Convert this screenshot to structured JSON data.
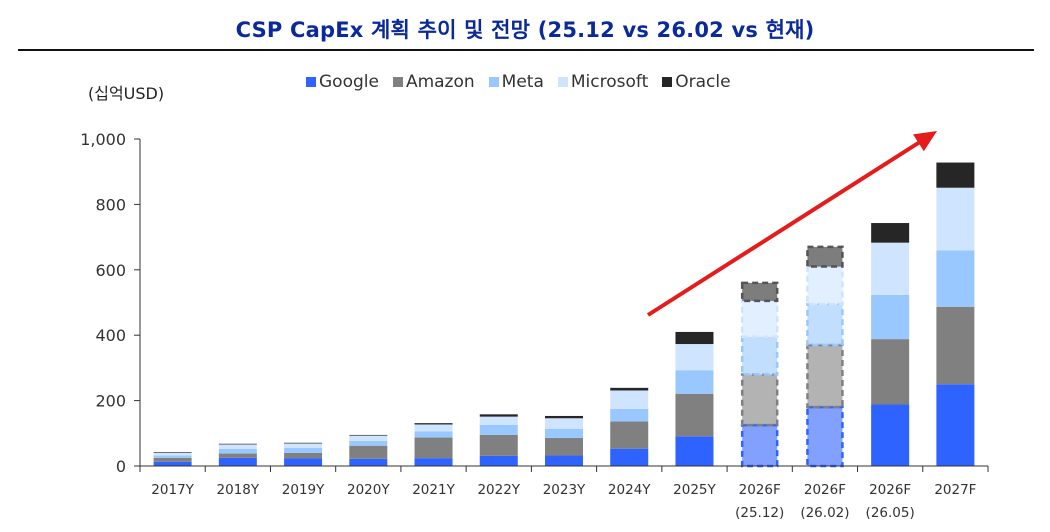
{
  "title": "CSP CapEx 계획 추이 및 전망 (25.12 vs 26.02 vs 현재)",
  "unit_label": "(십억USD)",
  "colors": {
    "Google": "#2f63ff",
    "Amazon": "#808080",
    "Meta": "#98c8ff",
    "Microsoft": "#cfe4ff",
    "Oracle": "#262626",
    "arrow": "#e51c1c",
    "title": "#0b2a99"
  },
  "chart_data": {
    "type": "bar",
    "stacked": true,
    "title": "CSP CapEx 계획 추이 및 전망 (25.12 vs 26.02 vs 현재)",
    "ylabel": "(십억USD)",
    "ylim": [
      0,
      1000
    ],
    "yticks": [
      0,
      200,
      400,
      600,
      800,
      1000
    ],
    "ytick_labels": [
      "0",
      "200",
      "400",
      "600",
      "800",
      "1,000"
    ],
    "legend_position": "top-center",
    "categories": [
      {
        "line1": "2017Y",
        "line2": ""
      },
      {
        "line1": "2018Y",
        "line2": ""
      },
      {
        "line1": "2019Y",
        "line2": ""
      },
      {
        "line1": "2020Y",
        "line2": ""
      },
      {
        "line1": "2021Y",
        "line2": ""
      },
      {
        "line1": "2022Y",
        "line2": ""
      },
      {
        "line1": "2023Y",
        "line2": ""
      },
      {
        "line1": "2024Y",
        "line2": ""
      },
      {
        "line1": "2025Y",
        "line2": ""
      },
      {
        "line1": "2026F",
        "line2": "(25.12)"
      },
      {
        "line1": "2026F",
        "line2": "(26.02)"
      },
      {
        "line1": "2026F",
        "line2": "(26.05)"
      },
      {
        "line1": "2027F",
        "line2": ""
      }
    ],
    "dashed": [
      false,
      false,
      false,
      false,
      false,
      false,
      false,
      false,
      false,
      true,
      true,
      false,
      false
    ],
    "series": [
      {
        "name": "Google",
        "values": [
          13,
          25,
          24,
          22,
          24,
          31,
          32,
          53,
          91,
          125,
          180,
          188,
          250
        ]
      },
      {
        "name": "Amazon",
        "values": [
          12,
          13,
          16,
          40,
          63,
          64,
          54,
          83,
          130,
          155,
          190,
          200,
          237
        ]
      },
      {
        "name": "Meta",
        "values": [
          7,
          14,
          15,
          15,
          19,
          31,
          28,
          39,
          72,
          115,
          125,
          135,
          172
        ]
      },
      {
        "name": "Microsoft",
        "values": [
          8,
          14,
          14,
          16,
          21,
          25,
          32,
          56,
          80,
          110,
          115,
          160,
          192
        ]
      },
      {
        "name": "Oracle",
        "values": [
          2,
          2,
          2,
          2,
          4,
          7,
          7,
          8,
          37,
          55,
          60,
          60,
          77
        ]
      }
    ]
  }
}
